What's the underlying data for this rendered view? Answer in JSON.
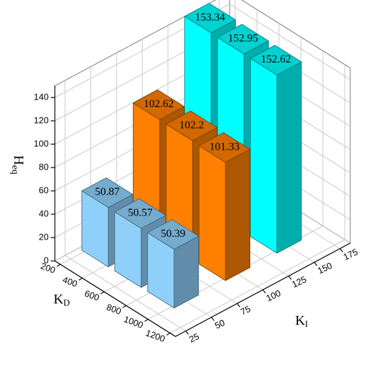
{
  "chart_data": {
    "type": "bar3d",
    "xlabel": [
      "K",
      "D"
    ],
    "ylabel": [
      "K",
      "I"
    ],
    "zlabel": [
      "H",
      "eq"
    ],
    "xlim": [
      150,
      1250
    ],
    "xticks": [
      200,
      400,
      600,
      800,
      1000,
      1200
    ],
    "ylim": [
      15,
      185
    ],
    "yticks": [
      25,
      50,
      75,
      100,
      125,
      150,
      175
    ],
    "zlim": [
      0,
      150
    ],
    "zticks": [
      0,
      20,
      40,
      60,
      80,
      100,
      120,
      140
    ],
    "grid": true,
    "series": [
      {
        "color": "#8fd0fa",
        "y": 50,
        "x": [
          300,
          600,
          900
        ],
        "values": [
          50.87,
          50.57,
          50.39
        ]
      },
      {
        "color": "#ff8000",
        "y": 100,
        "x": [
          300,
          600,
          900
        ],
        "values": [
          102.62,
          102.2,
          101.33
        ]
      },
      {
        "color": "#00ffff",
        "y": 150,
        "x": [
          300,
          600,
          900
        ],
        "values": [
          153.34,
          152.95,
          152.62
        ]
      }
    ]
  }
}
